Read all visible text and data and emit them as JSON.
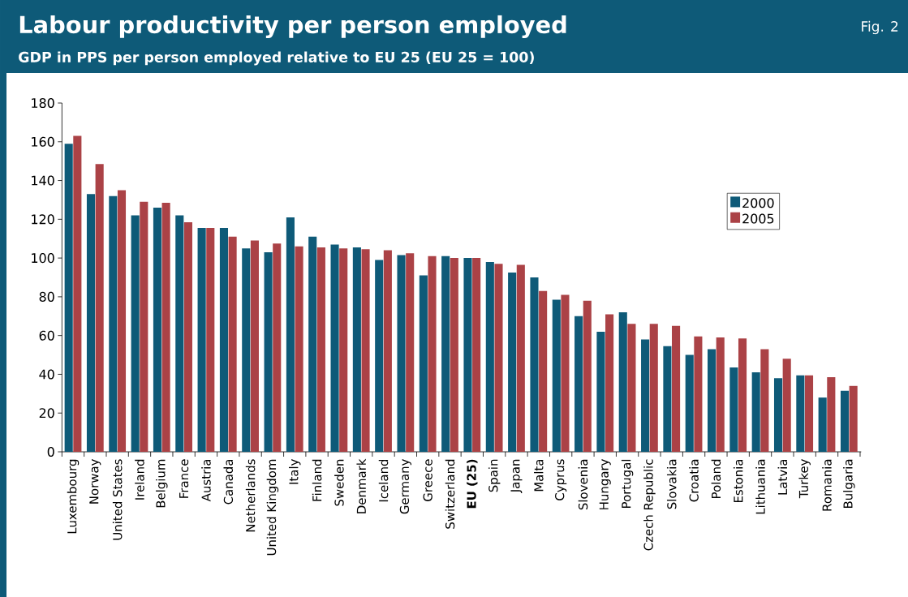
{
  "chart_data": {
    "type": "bar",
    "title": "Labour productivity per person employed",
    "subtitle": "GDP in PPS per person employed relative to EU 25 (EU 25 = 100)",
    "annotations": [
      "Fig. 2"
    ],
    "categories": [
      "Luxembourg",
      "Norway",
      "United States",
      "Ireland",
      "Belgium",
      "France",
      "Austria",
      "Canada",
      "Netherlands",
      "United Kingdom",
      "Italy",
      "Finland",
      "Sweden",
      "Denmark",
      "Iceland",
      "Germany",
      "Greece",
      "Switzerland",
      "**EU (25)**",
      "Spain",
      "Japan",
      "Malta",
      "Cyprus",
      "Slovenia",
      "Hungary",
      "Portugal",
      "Czech Republic",
      "Slovakia",
      "Croatia",
      "Poland",
      "Estonia",
      "Lithuania",
      "Latvia",
      "Turkey",
      "Romania",
      "Bulgaria"
    ],
    "series": [
      {
        "name": "2000",
        "color": "#0e5a78",
        "values": [
          159,
          133,
          132,
          122,
          126,
          122,
          115.5,
          115.5,
          105,
          103,
          121,
          111,
          107,
          105.5,
          99,
          101.5,
          91,
          101,
          100,
          98,
          92.5,
          90,
          78.5,
          70,
          62,
          72,
          58,
          54.5,
          50,
          53,
          43.5,
          41,
          38,
          39.5,
          28,
          31.5
        ]
      },
      {
        "name": "2005",
        "color": "#ab4246",
        "values": [
          163,
          148.5,
          135,
          129,
          128.5,
          118.5,
          115.5,
          111,
          109,
          107.5,
          106,
          105.5,
          105,
          104.5,
          104,
          102.5,
          101,
          100,
          100,
          97,
          96.5,
          83,
          81,
          78,
          71,
          66,
          66,
          65,
          59.5,
          59,
          58.5,
          53,
          48,
          39.5,
          38.5,
          34
        ]
      }
    ],
    "ylim": [
      0,
      180
    ],
    "yticks": [
      0,
      20,
      40,
      60,
      80,
      100,
      120,
      140,
      160,
      180
    ],
    "legend": "top right"
  }
}
